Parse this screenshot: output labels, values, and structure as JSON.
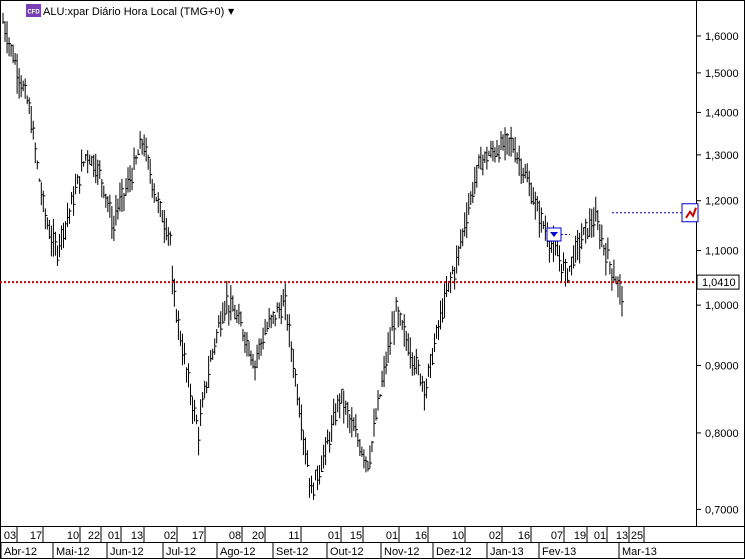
{
  "header": {
    "badge": "CFD",
    "title": "ALU:xpar Diário Hora Local (TMG+0)",
    "menu_arrow": "▼"
  },
  "colors": {
    "bars": "#000000",
    "price_line": "#cc0000",
    "alert_line": "#0000cc",
    "badge_bg": "#7a3fb5"
  },
  "chart_data": {
    "type": "ohlc",
    "title": "ALU:xpar Diário Hora Local (TMG+0)",
    "y_scale": "log",
    "ylim": [
      0.68,
      1.68
    ],
    "y_ticks": [
      "1,6000",
      "1,5000",
      "1,4000",
      "1,3000",
      "1,2000",
      "1,1000",
      "1,0000",
      "0,9000",
      "0,8000",
      "0,7000"
    ],
    "last_price": "1,0410",
    "last_price_value": 1.041,
    "alert_level_value": 1.175,
    "day_ticks": [
      "03",
      "17",
      "10",
      "22",
      "01",
      "13",
      "02",
      "17",
      "08",
      "20",
      "11",
      "01",
      "15",
      "01",
      "16",
      "10",
      "02",
      "16",
      "07",
      "19",
      "01",
      "13",
      "25"
    ],
    "months": [
      "Abr-12",
      "Mai-12",
      "Jun-12",
      "Jul-12",
      "Ago-12",
      "Set-12",
      "Out-12",
      "Nov-12",
      "Dez-12",
      "Jan-13",
      "Fev-13",
      "Mar-13"
    ],
    "series": [
      {
        "start": 1.64,
        "end": 1.41,
        "mid": 1.52
      },
      {
        "start": 1.38,
        "end": 1.1,
        "mid": 1.18
      },
      {
        "start": 1.12,
        "end": 1.3,
        "mid": 1.2
      },
      {
        "start": 1.3,
        "end": 1.14,
        "mid": 1.25
      },
      {
        "start": 1.18,
        "end": 1.33,
        "mid": 1.24
      },
      {
        "start": 1.32,
        "end": 1.13,
        "mid": 1.2
      },
      {
        "start": 1.03,
        "end": 0.8,
        "mid": 0.9
      },
      {
        "start": 0.82,
        "end": 1.01,
        "mid": 0.93
      },
      {
        "start": 1.0,
        "end": 0.9,
        "mid": 0.96
      },
      {
        "start": 0.92,
        "end": 1.0,
        "mid": 0.97
      },
      {
        "start": 1.0,
        "end": 0.72,
        "mid": 0.85
      },
      {
        "start": 0.73,
        "end": 0.85,
        "mid": 0.78
      },
      {
        "start": 0.85,
        "end": 0.76,
        "mid": 0.8
      },
      {
        "start": 0.77,
        "end": 0.99,
        "mid": 0.88
      },
      {
        "start": 0.98,
        "end": 0.87,
        "mid": 0.92
      },
      {
        "start": 0.87,
        "end": 1.06,
        "mid": 0.97
      },
      {
        "start": 1.06,
        "end": 1.29,
        "mid": 1.18
      },
      {
        "start": 1.29,
        "end": 1.33,
        "mid": 1.31
      },
      {
        "start": 1.33,
        "end": 1.18,
        "mid": 1.26
      },
      {
        "start": 1.17,
        "end": 1.06,
        "mid": 1.11
      },
      {
        "start": 1.06,
        "end": 1.16,
        "mid": 1.12
      },
      {
        "start": 1.16,
        "end": 1.02,
        "mid": 1.08
      }
    ]
  }
}
